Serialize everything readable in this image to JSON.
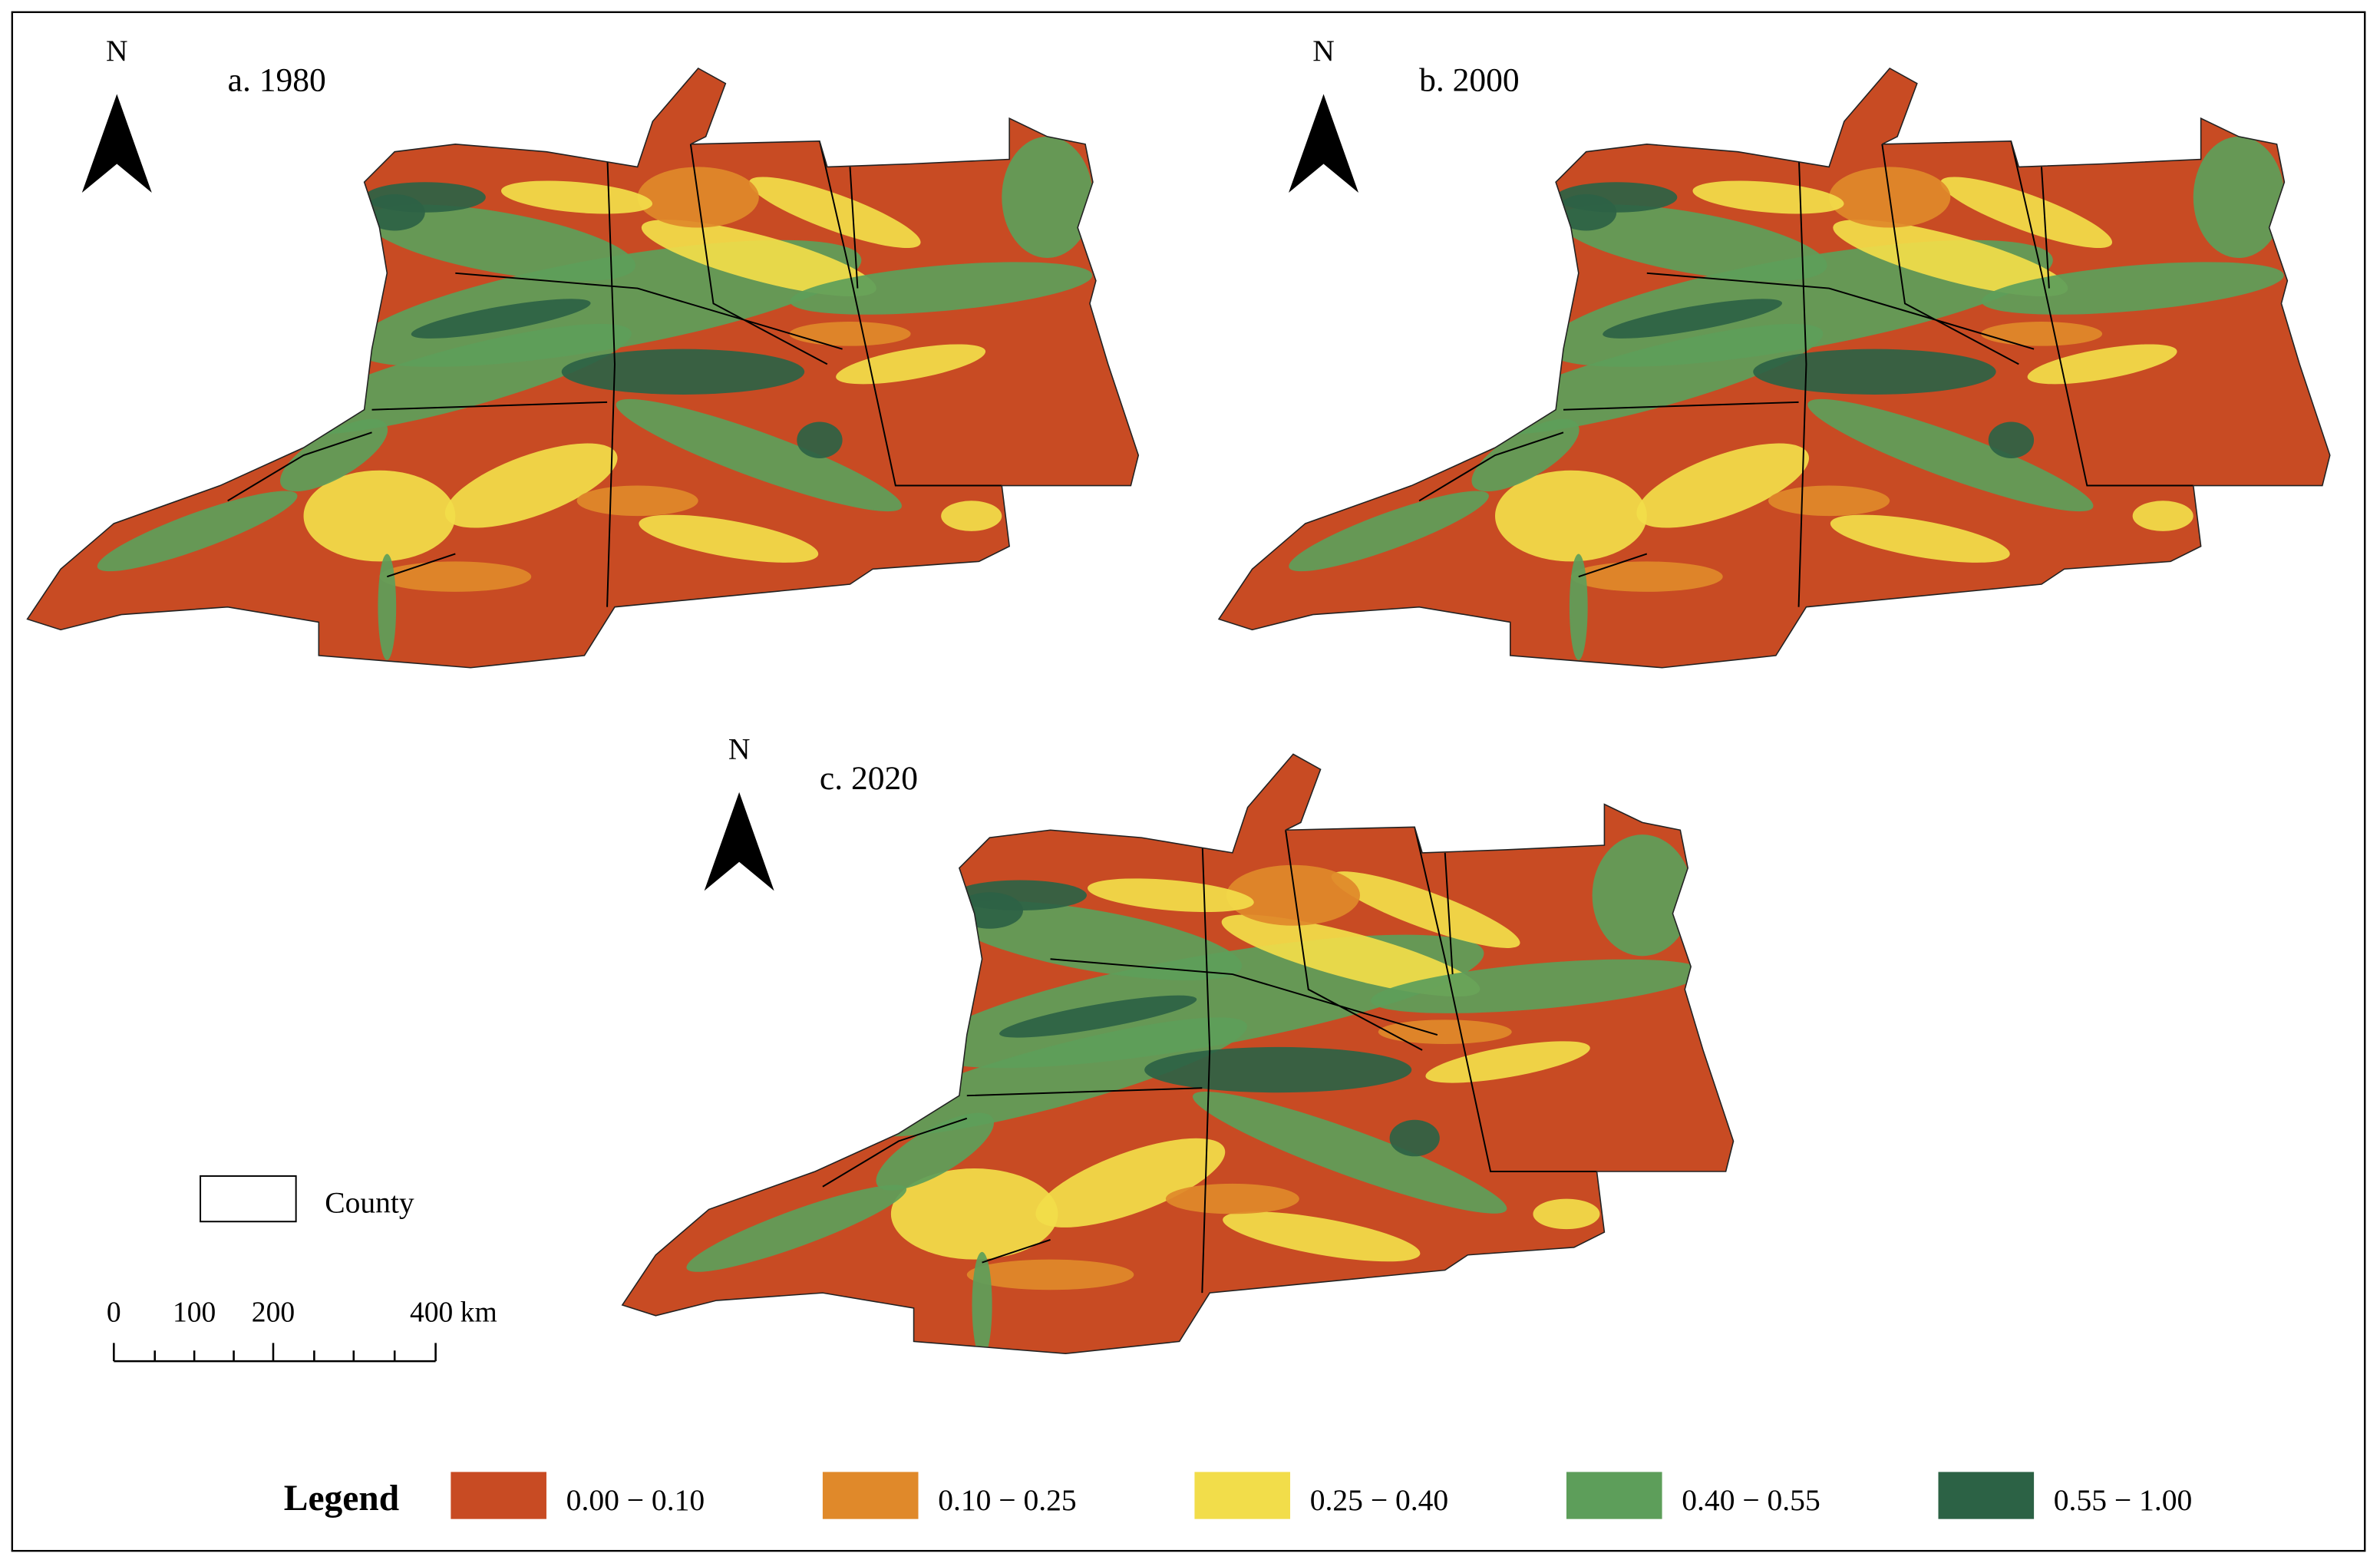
{
  "panels": [
    {
      "title": "a. 1980",
      "north": "N"
    },
    {
      "title": "b. 2000",
      "north": "N"
    },
    {
      "title": "c. 2020",
      "north": "N"
    }
  ],
  "county_legend": {
    "label": "County"
  },
  "scale_bar": {
    "labels": [
      "0",
      "100",
      "200",
      "400 km"
    ]
  },
  "legend": {
    "title": "Legend",
    "items": [
      {
        "label": "0.00 − 0.10",
        "color": "#c84b23"
      },
      {
        "label": "0.10 − 0.25",
        "color": "#e0892a"
      },
      {
        "label": "0.25 − 0.40",
        "color": "#f2dd4a"
      },
      {
        "label": "0.40 − 0.55",
        "color": "#5d9e5a"
      },
      {
        "label": "0.55 − 1.00",
        "color": "#2c6245"
      }
    ]
  }
}
